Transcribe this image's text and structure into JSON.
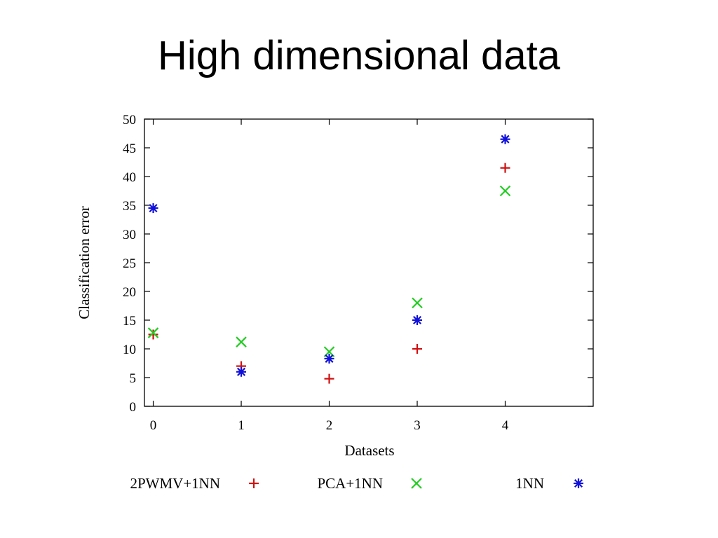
{
  "slide": {
    "title": "High dimensional data"
  },
  "chart_data": {
    "type": "scatter",
    "xlabel": "Datasets",
    "ylabel": "Classification error",
    "xlim": [
      -0.1,
      5.0
    ],
    "ylim": [
      0,
      50
    ],
    "xticks": [
      0,
      1,
      2,
      3,
      4
    ],
    "yticks": [
      0,
      5,
      10,
      15,
      20,
      25,
      30,
      35,
      40,
      45,
      50
    ],
    "grid": false,
    "legend_placement": "bottom",
    "series": [
      {
        "name": "2PWMV+1NN",
        "marker": "plus",
        "color": "#d01010",
        "x": [
          0,
          1,
          2,
          3,
          4
        ],
        "y": [
          12.5,
          7.0,
          4.8,
          10.0,
          41.5
        ]
      },
      {
        "name": "PCA+1NN",
        "marker": "cross",
        "color": "#22cc22",
        "x": [
          0,
          1,
          2,
          3,
          4
        ],
        "y": [
          12.8,
          11.2,
          9.5,
          18.0,
          37.5
        ]
      },
      {
        "name": "1NN",
        "marker": "star",
        "color": "#1010d8",
        "x": [
          0,
          1,
          2,
          3,
          4
        ],
        "y": [
          34.5,
          6.0,
          8.3,
          15.0,
          46.5
        ]
      }
    ]
  }
}
